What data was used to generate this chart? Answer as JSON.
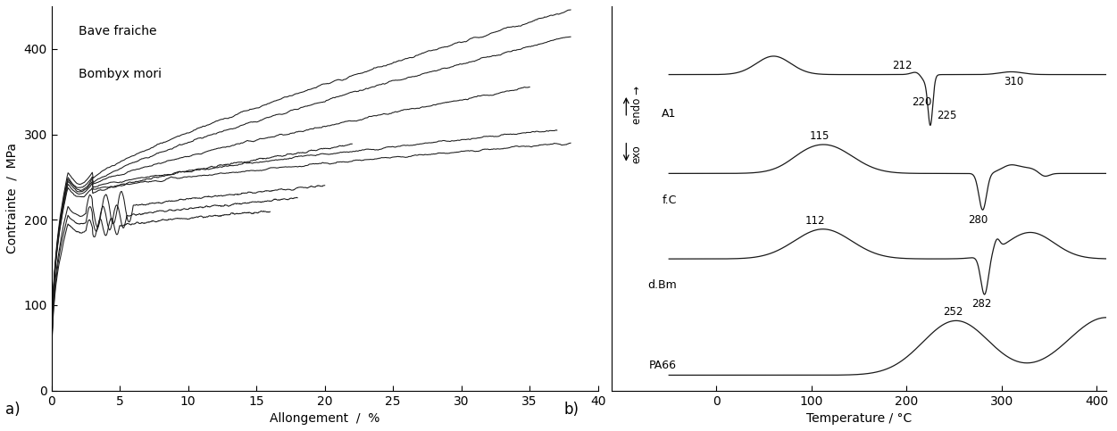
{
  "panel_a": {
    "title_line1": "Bave fraiche",
    "title_line2": "Bombyx mori",
    "xlabel": "Allongement  /  %",
    "ylabel": "Contrainte  /  MPa",
    "xlim": [
      0,
      40
    ],
    "ylim": [
      0,
      450
    ],
    "xticks": [
      0,
      5,
      10,
      15,
      20,
      25,
      30,
      35,
      40
    ],
    "yticks": [
      0,
      100,
      200,
      300,
      400
    ]
  },
  "panel_b": {
    "xlabel": "Temperature / °C",
    "xlim": [
      -50,
      400
    ],
    "xticks": [
      0,
      100,
      200,
      300,
      400
    ],
    "labels": [
      "A1",
      "f.C",
      "d.Bm",
      "PA66"
    ]
  },
  "bg_color": "#ffffff",
  "line_color": "#1a1a1a"
}
